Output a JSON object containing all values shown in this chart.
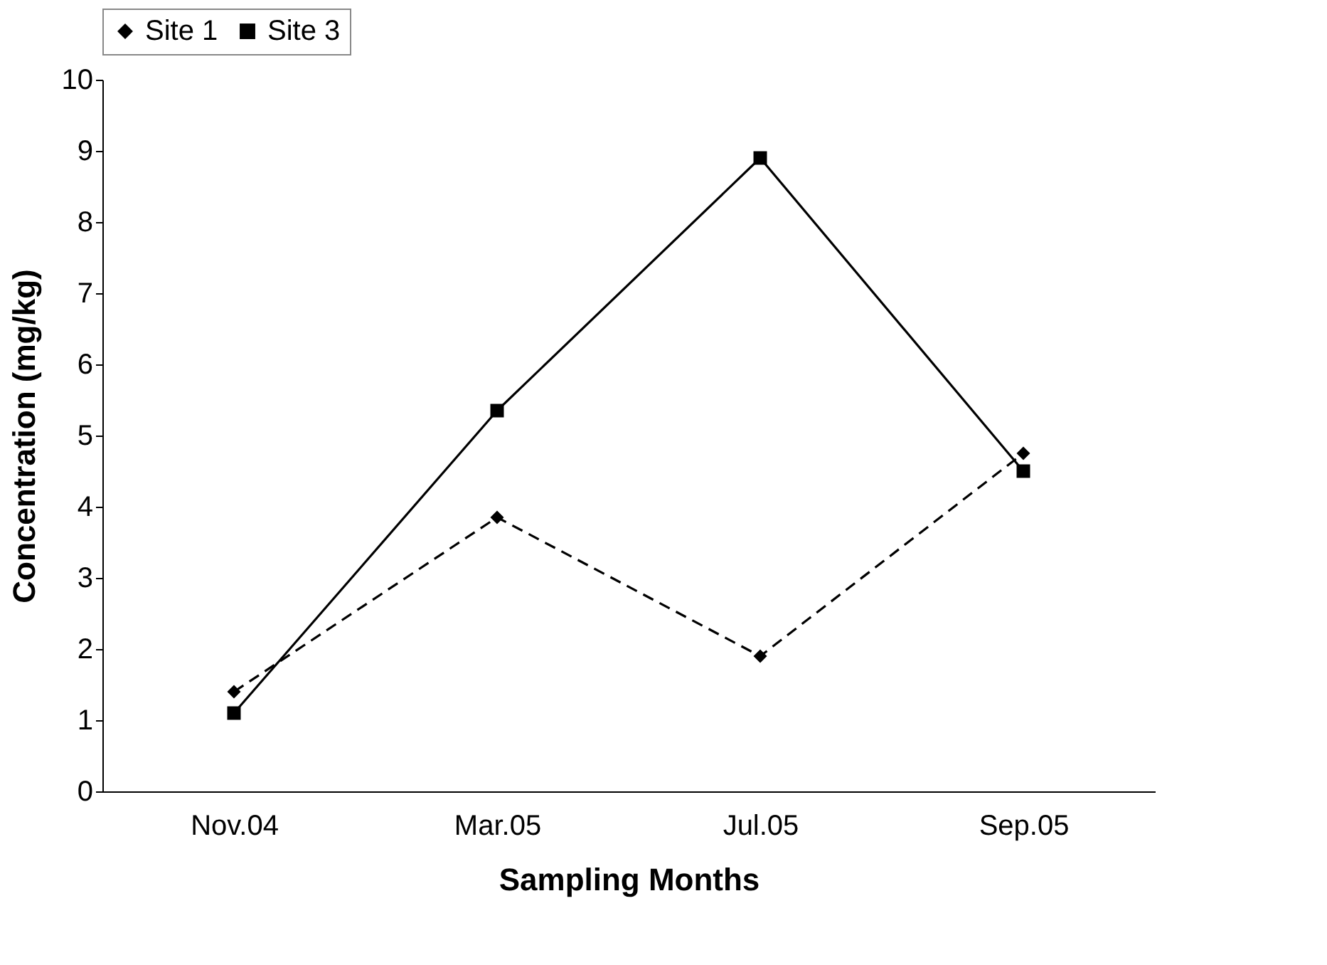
{
  "chart_data": {
    "type": "line",
    "xlabel": "Sampling Months",
    "ylabel": "Concentration (mg/kg)",
    "categories": [
      "Nov.04",
      "Mar.05",
      "Jul.05",
      "Sep.05"
    ],
    "series": [
      {
        "name": "Site 1",
        "color": "#000000",
        "values": [
          1.4,
          3.85,
          1.9,
          4.75
        ],
        "marker": "diamond",
        "line_style": "dashed"
      },
      {
        "name": "Site 3",
        "color": "#000000",
        "values": [
          1.1,
          5.35,
          8.9,
          4.5
        ],
        "marker": "square",
        "line_style": "solid"
      }
    ],
    "ylim": [
      0,
      10
    ],
    "yticks": [
      0,
      1,
      2,
      3,
      4,
      5,
      6,
      7,
      8,
      9,
      10
    ],
    "grid": false,
    "legend": "top"
  }
}
